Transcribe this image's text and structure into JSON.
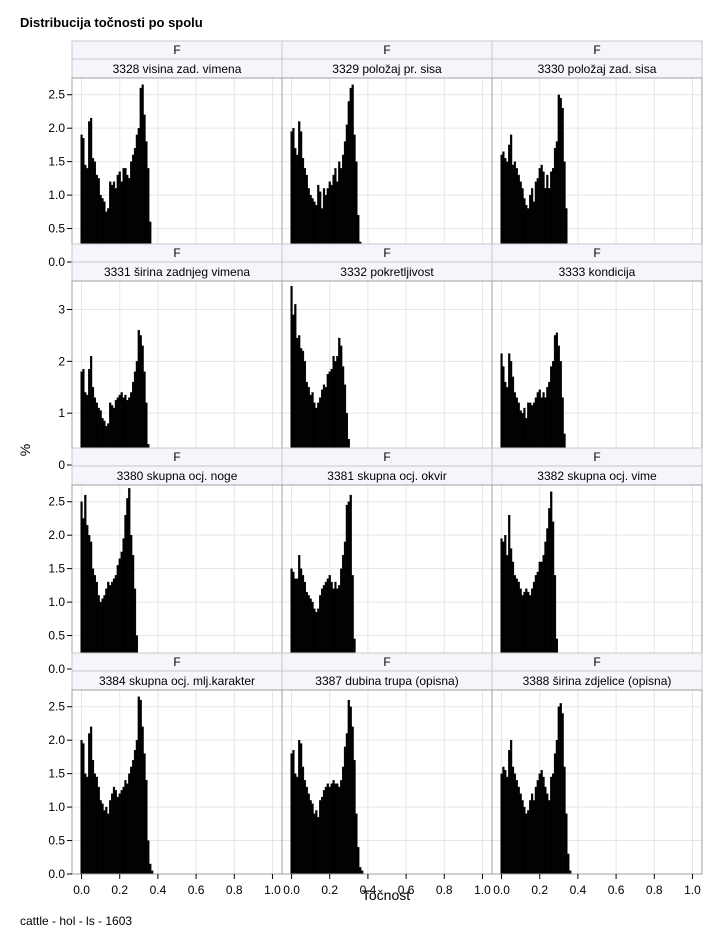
{
  "chart_data": {
    "type": "bar",
    "title": "Distribucija točnosti po spolu",
    "xlabel": "Točnost",
    "ylabel": "%",
    "footnote": "cattle - hol - ls - 1603",
    "grid": true,
    "xlim": [
      -0.05,
      1.05
    ],
    "x_ticks": [
      "0.0",
      "0.2",
      "0.4",
      "0.6",
      "0.8",
      "1.0"
    ],
    "rows": [
      {
        "ylim": [
          0,
          2.75
        ],
        "y_ticks": [
          "0.0",
          "0.5",
          "1.0",
          "1.5",
          "2.0",
          "2.5"
        ]
      },
      {
        "ylim": [
          0,
          3.55
        ],
        "y_ticks": [
          "0",
          "1",
          "2",
          "3"
        ]
      },
      {
        "ylim": [
          0,
          2.75
        ],
        "y_ticks": [
          "0.0",
          "0.5",
          "1.0",
          "1.5",
          "2.0",
          "2.5"
        ]
      },
      {
        "ylim": [
          0,
          2.75
        ],
        "y_ticks": [
          "0.0",
          "0.5",
          "1.0",
          "1.5",
          "2.0",
          "2.5"
        ]
      }
    ],
    "panels": [
      {
        "sex": "F",
        "trait": "3328 visina zad. vimena",
        "values": [
          1.9,
          1.85,
          1.45,
          1.4,
          2.1,
          2.15,
          1.55,
          1.5,
          1.3,
          1.25,
          1.0,
          0.95,
          0.9,
          0.75,
          0.8,
          1.2,
          1.15,
          1.2,
          1.1,
          1.3,
          1.35,
          1.2,
          1.4,
          1.4,
          1.3,
          1.25,
          1.5,
          1.6,
          1.7,
          1.9,
          2.0,
          2.6,
          2.65,
          2.2,
          1.8,
          1.4,
          0.6,
          0.2,
          0.05
        ]
      },
      {
        "sex": "F",
        "trait": "3329 položaj pr. sisa",
        "values": [
          1.95,
          2.0,
          1.7,
          1.6,
          2.1,
          1.95,
          1.55,
          1.4,
          1.3,
          1.1,
          1.0,
          0.95,
          0.9,
          0.85,
          1.15,
          1.05,
          0.8,
          1.1,
          1.0,
          1.1,
          1.2,
          1.15,
          1.3,
          1.4,
          1.2,
          1.5,
          1.4,
          1.6,
          1.8,
          2.05,
          2.4,
          2.6,
          2.65,
          1.9,
          1.5,
          0.7,
          0.3,
          0.2
        ]
      },
      {
        "sex": "F",
        "trait": "3330 položaj zad. sisa",
        "values": [
          1.6,
          1.65,
          1.55,
          1.5,
          1.75,
          1.9,
          1.45,
          1.5,
          1.4,
          1.3,
          1.2,
          1.1,
          0.95,
          0.85,
          0.8,
          1.0,
          1.1,
          0.9,
          1.2,
          1.25,
          1.4,
          1.45,
          1.35,
          1.1,
          1.3,
          1.1,
          1.35,
          1.4,
          1.7,
          1.8,
          2.5,
          2.45,
          2.3,
          1.5,
          0.8,
          0.25,
          0.05
        ]
      },
      {
        "sex": "F",
        "trait": "3331 širina zadnjeg vimena",
        "values": [
          1.8,
          1.85,
          1.4,
          1.35,
          1.85,
          2.1,
          1.5,
          1.3,
          1.2,
          1.1,
          1.05,
          0.9,
          0.85,
          0.75,
          0.8,
          1.2,
          1.15,
          1.1,
          1.25,
          1.3,
          1.35,
          1.4,
          1.3,
          1.35,
          1.25,
          1.3,
          1.4,
          1.6,
          1.8,
          2.0,
          2.6,
          2.5,
          2.3,
          1.8,
          1.2,
          0.4,
          0.1,
          0.05
        ]
      },
      {
        "sex": "F",
        "trait": "3332 pokretljivost",
        "values": [
          3.45,
          2.9,
          3.1,
          2.45,
          2.5,
          2.25,
          2.2,
          2.0,
          1.6,
          1.5,
          1.35,
          1.4,
          1.2,
          1.1,
          1.2,
          1.3,
          1.45,
          1.55,
          1.5,
          1.75,
          1.8,
          1.85,
          2.1,
          2.0,
          2.1,
          2.45,
          2.3,
          1.9,
          1.55,
          1.0,
          0.5,
          0.2,
          0.05
        ]
      },
      {
        "sex": "F",
        "trait": "3333 kondicija",
        "values": [
          2.15,
          1.9,
          1.6,
          1.5,
          2.15,
          2.0,
          1.7,
          1.4,
          1.3,
          1.2,
          1.05,
          1.0,
          1.1,
          0.9,
          1.2,
          1.2,
          1.15,
          1.2,
          1.3,
          1.4,
          1.45,
          1.3,
          1.4,
          1.3,
          1.5,
          1.6,
          1.9,
          2.0,
          2.5,
          2.55,
          2.3,
          2.0,
          1.3,
          0.6,
          0.2,
          0.05
        ]
      },
      {
        "sex": "F",
        "trait": "3380 skupna ocj. noge",
        "values": [
          2.5,
          2.25,
          2.6,
          2.15,
          2.0,
          1.9,
          1.5,
          1.4,
          1.3,
          1.1,
          1.0,
          1.05,
          1.1,
          1.2,
          1.3,
          1.25,
          1.3,
          1.35,
          1.4,
          1.55,
          1.65,
          1.75,
          1.95,
          2.3,
          2.55,
          2.7,
          2.0,
          1.7,
          1.2,
          0.5,
          0.2,
          0.05
        ]
      },
      {
        "sex": "F",
        "trait": "3381 skupna ocj. okvir",
        "values": [
          1.5,
          1.45,
          1.35,
          1.35,
          1.7,
          1.5,
          1.4,
          1.3,
          1.15,
          1.1,
          1.05,
          1.0,
          0.9,
          0.85,
          0.9,
          1.1,
          1.2,
          1.25,
          1.3,
          1.35,
          1.4,
          1.3,
          1.2,
          1.3,
          1.2,
          1.25,
          1.5,
          1.7,
          1.9,
          2.45,
          2.5,
          2.6,
          1.4,
          0.45,
          0.15,
          0.05
        ]
      },
      {
        "sex": "F",
        "trait": "3382 skupna ocj. vime",
        "values": [
          1.95,
          1.9,
          2.0,
          1.7,
          2.3,
          1.8,
          1.6,
          1.4,
          1.35,
          1.3,
          1.2,
          1.1,
          1.15,
          1.2,
          1.15,
          1.1,
          1.2,
          1.3,
          1.4,
          1.45,
          1.6,
          1.6,
          1.7,
          1.9,
          2.1,
          2.4,
          2.65,
          2.2,
          1.4,
          0.45,
          0.1,
          0.05
        ]
      },
      {
        "sex": "F",
        "trait": "3384 skupna ocj. mlj.karakter",
        "values": [
          2.0,
          1.95,
          1.5,
          1.45,
          2.1,
          2.2,
          1.7,
          1.5,
          1.45,
          1.3,
          1.1,
          1.05,
          0.95,
          1.0,
          0.9,
          1.1,
          1.2,
          1.3,
          1.25,
          1.15,
          1.2,
          1.25,
          1.3,
          1.4,
          1.35,
          1.5,
          1.6,
          1.7,
          1.85,
          2.0,
          2.65,
          2.6,
          2.2,
          1.8,
          1.4,
          0.5,
          0.15,
          0.05
        ]
      },
      {
        "sex": "F",
        "trait": "3387 dubina trupa (opisna)",
        "values": [
          1.8,
          1.85,
          1.5,
          1.45,
          2.0,
          1.95,
          1.6,
          1.4,
          1.3,
          1.2,
          1.1,
          1.05,
          0.9,
          0.95,
          0.85,
          1.1,
          1.15,
          1.25,
          1.3,
          1.35,
          1.3,
          1.35,
          1.4,
          1.35,
          1.35,
          1.3,
          1.4,
          1.6,
          1.9,
          2.1,
          2.6,
          2.5,
          2.2,
          1.7,
          0.9,
          0.4,
          0.1,
          0.05
        ]
      },
      {
        "sex": "F",
        "trait": "3388 širina zdjelice (opisna)",
        "values": [
          1.5,
          1.6,
          1.55,
          1.45,
          1.85,
          2.0,
          1.6,
          1.5,
          1.4,
          1.3,
          1.2,
          1.1,
          1.0,
          0.9,
          0.95,
          1.1,
          1.2,
          1.1,
          1.3,
          1.4,
          1.5,
          1.55,
          1.45,
          1.3,
          1.2,
          1.1,
          1.45,
          1.5,
          1.8,
          2.0,
          2.5,
          2.55,
          2.4,
          1.6,
          0.9,
          0.3,
          0.05
        ]
      }
    ]
  }
}
